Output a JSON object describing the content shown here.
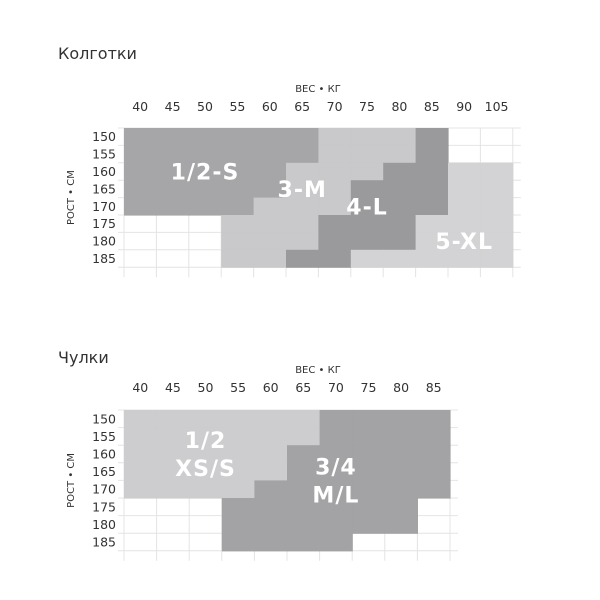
{
  "sections": [
    {
      "title": "Колготки",
      "chart_data": {
        "type": "heatmap",
        "xlabel": "ВЕС • КГ",
        "ylabel": "РОСТ • СМ",
        "x_ticks": [
          "40",
          "45",
          "50",
          "55",
          "60",
          "65",
          "70",
          "75",
          "80",
          "85",
          "90",
          "105"
        ],
        "y_ticks": [
          "150",
          "155",
          "160",
          "165",
          "170",
          "175",
          "180",
          "185"
        ],
        "zones": [
          {
            "name": "1/2-S",
            "color": "#a6a6a8",
            "label_at": [
              50,
              160
            ]
          },
          {
            "name": "3-M",
            "color": "#c9c9cb",
            "label_at": [
              65,
              165
            ]
          },
          {
            "name": "4-L",
            "color": "#9a9a9c",
            "label_at": [
              75,
              170
            ]
          },
          {
            "name": "5-XL",
            "color": "#d3d3d5",
            "label_at": [
              90,
              180
            ]
          }
        ],
        "grid": [
          [
            "1/2-S",
            "1/2-S",
            "1/2-S",
            "1/2-S",
            "1/2-S",
            "1/2-S",
            "3-M",
            "3-M",
            "3-M",
            "4-L",
            "",
            ""
          ],
          [
            "1/2-S",
            "1/2-S",
            "1/2-S",
            "1/2-S",
            "1/2-S",
            "1/2-S",
            "3-M",
            "3-M",
            "3-M",
            "4-L",
            "",
            ""
          ],
          [
            "1/2-S",
            "1/2-S",
            "1/2-S",
            "1/2-S",
            "1/2-S",
            "3-M",
            "3-M",
            "3-M",
            "4-L",
            "4-L",
            "5-XL",
            "5-XL"
          ],
          [
            "1/2-S",
            "1/2-S",
            "1/2-S",
            "1/2-S",
            "1/2-S",
            "3-M",
            "3-M",
            "4-L",
            "4-L",
            "4-L",
            "5-XL",
            "5-XL"
          ],
          [
            "1/2-S",
            "1/2-S",
            "1/2-S",
            "1/2-S",
            "3-M",
            "3-M",
            "3-M",
            "4-L",
            "4-L",
            "4-L",
            "5-XL",
            "5-XL"
          ],
          [
            "",
            "",
            "",
            "3-M",
            "3-M",
            "3-M",
            "4-L",
            "4-L",
            "4-L",
            "5-XL",
            "5-XL",
            "5-XL"
          ],
          [
            "",
            "",
            "",
            "3-M",
            "3-M",
            "3-M",
            "4-L",
            "4-L",
            "4-L",
            "5-XL",
            "5-XL",
            "5-XL"
          ],
          [
            "",
            "",
            "",
            "3-M",
            "3-M",
            "4-L",
            "4-L",
            "5-XL",
            "5-XL",
            "5-XL",
            "5-XL",
            "5-XL"
          ]
        ]
      }
    },
    {
      "title": "Чулки",
      "chart_data": {
        "type": "heatmap",
        "xlabel": "ВЕС • КГ",
        "ylabel": "РОСТ • СМ",
        "x_ticks": [
          "40",
          "45",
          "50",
          "55",
          "60",
          "65",
          "70",
          "75",
          "80",
          "85"
        ],
        "y_ticks": [
          "150",
          "155",
          "160",
          "165",
          "170",
          "175",
          "180",
          "185"
        ],
        "zones": [
          {
            "name": "1/2 XS/S",
            "lines": [
              "1/2",
              "XS/S"
            ],
            "color": "#cdcdcf",
            "label_at": [
              50,
              160
            ]
          },
          {
            "name": "3/4 M/L",
            "lines": [
              "3/4",
              "M/L"
            ],
            "color": "#a3a3a5",
            "label_at": [
              70,
              167.5
            ]
          }
        ],
        "grid": [
          [
            "1/2 XS/S",
            "1/2 XS/S",
            "1/2 XS/S",
            "1/2 XS/S",
            "1/2 XS/S",
            "1/2 XS/S",
            "3/4 M/L",
            "3/4 M/L",
            "3/4 M/L",
            "3/4 M/L"
          ],
          [
            "1/2 XS/S",
            "1/2 XS/S",
            "1/2 XS/S",
            "1/2 XS/S",
            "1/2 XS/S",
            "1/2 XS/S",
            "3/4 M/L",
            "3/4 M/L",
            "3/4 M/L",
            "3/4 M/L"
          ],
          [
            "1/2 XS/S",
            "1/2 XS/S",
            "1/2 XS/S",
            "1/2 XS/S",
            "1/2 XS/S",
            "3/4 M/L",
            "3/4 M/L",
            "3/4 M/L",
            "3/4 M/L",
            "3/4 M/L"
          ],
          [
            "1/2 XS/S",
            "1/2 XS/S",
            "1/2 XS/S",
            "1/2 XS/S",
            "1/2 XS/S",
            "3/4 M/L",
            "3/4 M/L",
            "3/4 M/L",
            "3/4 M/L",
            "3/4 M/L"
          ],
          [
            "1/2 XS/S",
            "1/2 XS/S",
            "1/2 XS/S",
            "1/2 XS/S",
            "3/4 M/L",
            "3/4 M/L",
            "3/4 M/L",
            "3/4 M/L",
            "3/4 M/L",
            "3/4 M/L"
          ],
          [
            "",
            "",
            "",
            "3/4 M/L",
            "3/4 M/L",
            "3/4 M/L",
            "3/4 M/L",
            "3/4 M/L",
            "3/4 M/L",
            ""
          ],
          [
            "",
            "",
            "",
            "3/4 M/L",
            "3/4 M/L",
            "3/4 M/L",
            "3/4 M/L",
            "3/4 M/L",
            "3/4 M/L",
            ""
          ],
          [
            "",
            "",
            "",
            "3/4 M/L",
            "3/4 M/L",
            "3/4 M/L",
            "3/4 M/L",
            "",
            "",
            ""
          ]
        ]
      }
    }
  ]
}
